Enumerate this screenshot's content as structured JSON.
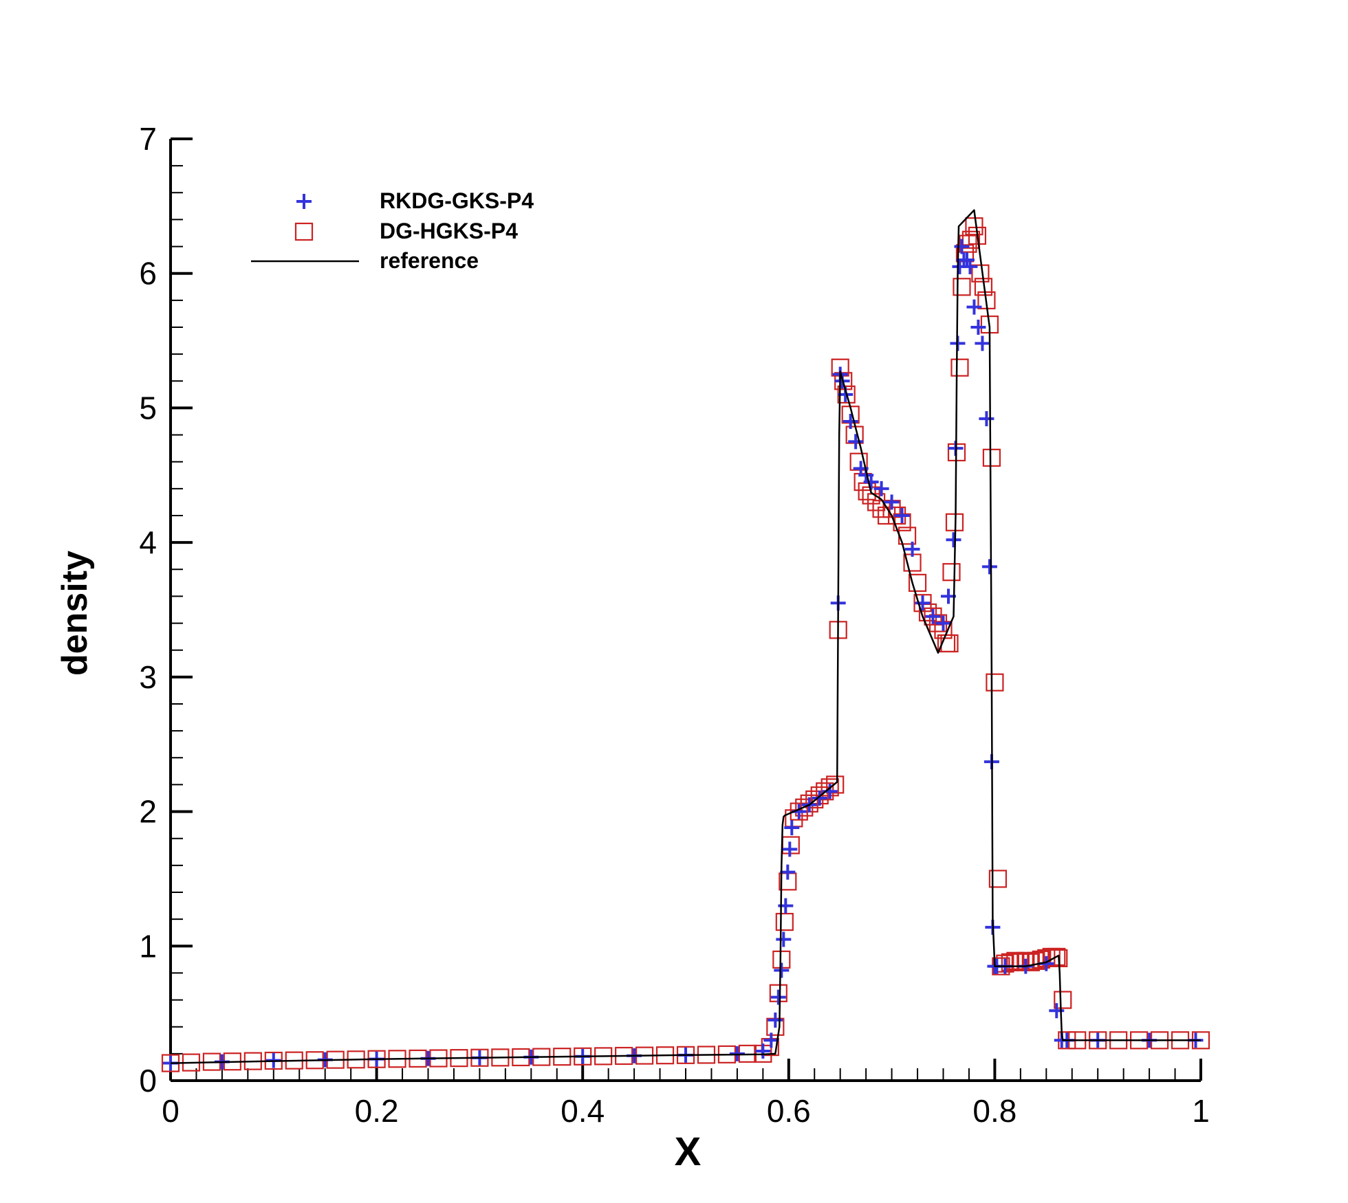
{
  "chart_data": {
    "type": "line",
    "title": "",
    "xlabel": "X",
    "ylabel": "density",
    "xlim": [
      0,
      1
    ],
    "ylim": [
      0,
      7
    ],
    "x_ticks": [
      0,
      0.2,
      0.4,
      0.6,
      0.8,
      1
    ],
    "x_tick_labels": [
      "0",
      "0.2",
      "0.4",
      "0.6",
      "0.8",
      "1"
    ],
    "y_ticks": [
      0,
      1,
      2,
      3,
      4,
      5,
      6,
      7
    ],
    "y_tick_labels": [
      "0",
      "1",
      "2",
      "3",
      "4",
      "5",
      "6",
      "7"
    ],
    "grid": false,
    "legend_position": "top-left",
    "colors": {
      "rkdg": "#3333dd",
      "hgks": "#cc2222",
      "reference": "#000000"
    },
    "series": [
      {
        "name": "RKDG-GKS-P4",
        "marker": "plus",
        "x": [
          0.0,
          0.05,
          0.1,
          0.15,
          0.2,
          0.25,
          0.3,
          0.35,
          0.4,
          0.45,
          0.5,
          0.55,
          0.575,
          0.583,
          0.587,
          0.59,
          0.593,
          0.595,
          0.597,
          0.599,
          0.601,
          0.603,
          0.61,
          0.62,
          0.63,
          0.64,
          0.648,
          0.65,
          0.652,
          0.655,
          0.66,
          0.665,
          0.67,
          0.675,
          0.68,
          0.69,
          0.7,
          0.71,
          0.72,
          0.73,
          0.74,
          0.75,
          0.755,
          0.76,
          0.762,
          0.764,
          0.766,
          0.768,
          0.77,
          0.773,
          0.776,
          0.78,
          0.784,
          0.788,
          0.792,
          0.795,
          0.797,
          0.798,
          0.8,
          0.802,
          0.81,
          0.83,
          0.85,
          0.86,
          0.865,
          0.87,
          0.9,
          0.95,
          0.995
        ],
        "y": [
          0.13,
          0.14,
          0.15,
          0.155,
          0.16,
          0.165,
          0.17,
          0.175,
          0.18,
          0.185,
          0.19,
          0.2,
          0.22,
          0.3,
          0.45,
          0.62,
          0.82,
          1.05,
          1.3,
          1.55,
          1.72,
          1.88,
          2.0,
          2.05,
          2.1,
          2.15,
          3.55,
          5.25,
          5.2,
          5.1,
          4.9,
          4.75,
          4.55,
          4.5,
          4.45,
          4.4,
          4.3,
          4.2,
          3.95,
          3.55,
          3.45,
          3.4,
          3.6,
          4.02,
          4.7,
          5.48,
          6.05,
          6.2,
          6.1,
          6.1,
          6.05,
          5.75,
          5.6,
          5.48,
          4.92,
          3.82,
          2.37,
          1.14,
          0.85,
          0.85,
          0.85,
          0.85,
          0.87,
          0.52,
          0.3,
          0.3,
          0.3,
          0.3,
          0.3
        ]
      },
      {
        "name": "DG-HGKS-P4",
        "marker": "square",
        "x": [
          0.0,
          0.02,
          0.04,
          0.06,
          0.08,
          0.1,
          0.12,
          0.14,
          0.16,
          0.18,
          0.2,
          0.22,
          0.24,
          0.26,
          0.28,
          0.3,
          0.32,
          0.34,
          0.36,
          0.38,
          0.4,
          0.42,
          0.44,
          0.46,
          0.48,
          0.5,
          0.52,
          0.54,
          0.56,
          0.575,
          0.582,
          0.587,
          0.59,
          0.593,
          0.596,
          0.599,
          0.602,
          0.605,
          0.61,
          0.615,
          0.62,
          0.625,
          0.63,
          0.635,
          0.64,
          0.645,
          0.648,
          0.65,
          0.653,
          0.656,
          0.66,
          0.664,
          0.668,
          0.672,
          0.676,
          0.68,
          0.685,
          0.69,
          0.695,
          0.7,
          0.705,
          0.71,
          0.715,
          0.72,
          0.725,
          0.73,
          0.735,
          0.74,
          0.745,
          0.75,
          0.753,
          0.756,
          0.758,
          0.761,
          0.763,
          0.766,
          0.768,
          0.771,
          0.774,
          0.777,
          0.78,
          0.783,
          0.786,
          0.789,
          0.792,
          0.795,
          0.797,
          0.8,
          0.803,
          0.806,
          0.81,
          0.815,
          0.82,
          0.825,
          0.83,
          0.835,
          0.84,
          0.845,
          0.85,
          0.855,
          0.86,
          0.862,
          0.866,
          0.87,
          0.88,
          0.9,
          0.92,
          0.94,
          0.96,
          0.98,
          1.0
        ],
        "y": [
          0.13,
          0.135,
          0.14,
          0.142,
          0.145,
          0.148,
          0.15,
          0.152,
          0.155,
          0.157,
          0.16,
          0.162,
          0.164,
          0.166,
          0.168,
          0.17,
          0.172,
          0.174,
          0.176,
          0.178,
          0.18,
          0.182,
          0.184,
          0.186,
          0.188,
          0.19,
          0.192,
          0.195,
          0.2,
          0.2,
          0.25,
          0.4,
          0.65,
          0.9,
          1.18,
          1.48,
          1.75,
          1.95,
          2.0,
          2.03,
          2.06,
          2.09,
          2.12,
          2.15,
          2.18,
          2.2,
          3.35,
          5.3,
          5.2,
          5.1,
          4.95,
          4.8,
          4.6,
          4.45,
          4.38,
          4.35,
          4.3,
          4.25,
          4.2,
          4.25,
          4.2,
          4.15,
          4.05,
          3.85,
          3.7,
          3.55,
          3.48,
          3.45,
          3.4,
          3.35,
          3.25,
          3.25,
          3.78,
          4.15,
          4.67,
          5.3,
          5.9,
          6.15,
          6.22,
          6.25,
          6.35,
          6.28,
          6.0,
          5.9,
          5.8,
          5.62,
          4.63,
          2.96,
          1.5,
          0.85,
          0.87,
          0.88,
          0.89,
          0.88,
          0.89,
          0.88,
          0.89,
          0.9,
          0.91,
          0.92,
          0.92,
          0.91,
          0.6,
          0.3,
          0.3,
          0.3,
          0.3,
          0.3,
          0.3,
          0.3,
          0.3
        ]
      },
      {
        "name": "reference",
        "marker": "line",
        "x": [
          0.0,
          0.1,
          0.2,
          0.3,
          0.4,
          0.5,
          0.575,
          0.587,
          0.591,
          0.592,
          0.593,
          0.594,
          0.595,
          0.596,
          0.62,
          0.647,
          0.648,
          0.649,
          0.65,
          0.66,
          0.67,
          0.68,
          0.69,
          0.7,
          0.71,
          0.72,
          0.73,
          0.745,
          0.76,
          0.762,
          0.763,
          0.764,
          0.765,
          0.78,
          0.795,
          0.797,
          0.798,
          0.8,
          0.81,
          0.83,
          0.85,
          0.862,
          0.863,
          0.864,
          0.865,
          0.866,
          0.9,
          0.95,
          1.0
        ],
        "y": [
          0.13,
          0.145,
          0.16,
          0.17,
          0.18,
          0.19,
          0.195,
          0.2,
          0.4,
          0.9,
          1.6,
          1.9,
          1.96,
          1.97,
          2.05,
          2.22,
          3.5,
          4.8,
          5.27,
          5.0,
          4.7,
          4.37,
          4.32,
          4.2,
          4.0,
          3.7,
          3.45,
          3.18,
          3.45,
          4.2,
          5.2,
          6.0,
          6.35,
          6.47,
          5.6,
          3.0,
          1.2,
          0.85,
          0.85,
          0.85,
          0.88,
          0.93,
          0.8,
          0.55,
          0.35,
          0.3,
          0.3,
          0.3,
          0.3
        ]
      }
    ]
  }
}
